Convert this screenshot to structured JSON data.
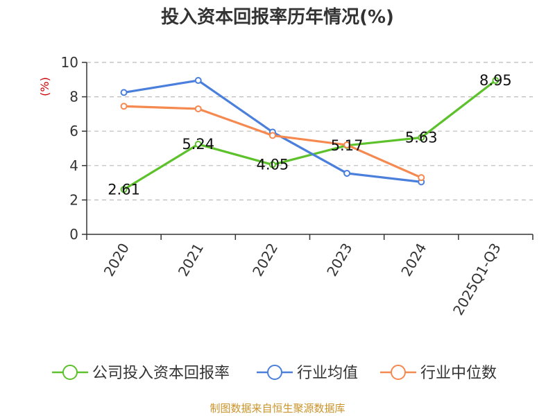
{
  "chart_data": {
    "type": "line",
    "title": "投入资本回报率历年情况(%)",
    "ylabel": "(%)",
    "xlabel": "",
    "ylim": [
      0,
      10
    ],
    "yticks": [
      0,
      2,
      4,
      6,
      8,
      10
    ],
    "grid": true,
    "legend_position": "bottom",
    "categories": [
      "2020",
      "2021",
      "2022",
      "2023",
      "2024",
      "2025Q1-Q3"
    ],
    "series": [
      {
        "name": "公司投入资本回报率",
        "color": "#5cc12a",
        "values": [
          2.61,
          5.24,
          4.05,
          5.17,
          5.63,
          8.95
        ],
        "labels": true
      },
      {
        "name": "行业均值",
        "color": "#4a7fdc",
        "values": [
          8.25,
          8.95,
          5.95,
          3.55,
          3.05,
          null
        ],
        "labels": false
      },
      {
        "name": "行业中位数",
        "color": "#f5894f",
        "values": [
          7.45,
          7.3,
          5.75,
          5.2,
          3.3,
          null
        ],
        "labels": false
      }
    ]
  },
  "source": "制图数据来自恒生聚源数据库"
}
